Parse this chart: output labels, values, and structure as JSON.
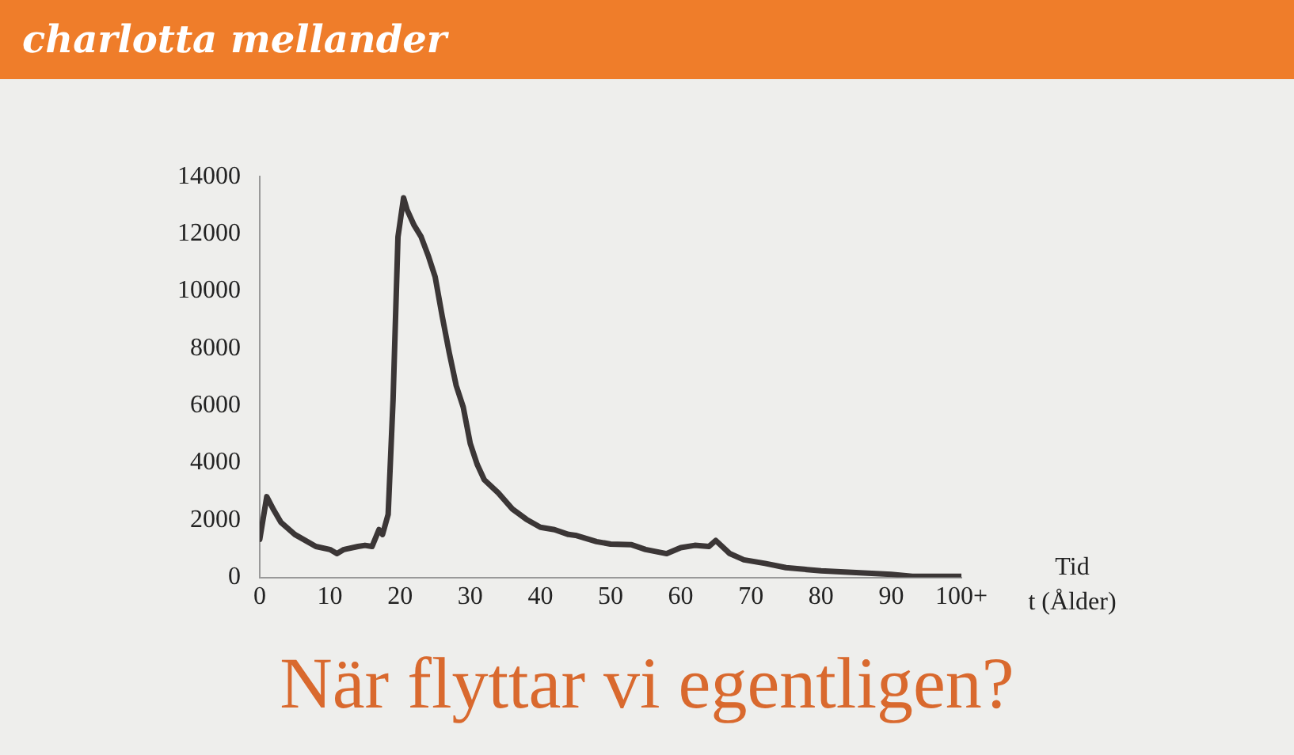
{
  "chart_data": {
    "type": "line",
    "title": "När flyttar vi egentligen?",
    "xlabel": "Tid\nt (Ålder)",
    "annotations": [
      "charlotta mellander"
    ],
    "x": [
      0,
      1,
      2,
      3,
      5,
      8,
      10,
      11,
      12,
      14,
      15,
      16,
      17,
      17.5,
      18.3,
      19,
      19.7,
      20.5,
      21,
      22,
      23,
      24,
      25,
      26,
      27,
      28,
      29,
      30,
      31,
      32,
      34,
      36,
      38,
      40,
      42,
      44,
      45,
      48,
      50,
      53,
      55,
      58,
      60,
      62,
      64,
      65,
      67,
      69,
      72,
      75,
      78,
      80,
      85,
      90,
      93,
      100
    ],
    "series": [
      {
        "color": "#3b3636",
        "values": [
          1330,
          2820,
          2350,
          1930,
          1500,
          1080,
          975,
          830,
          975,
          1080,
          1120,
          1080,
          1670,
          1500,
          2200,
          6200,
          11900,
          13260,
          12840,
          12300,
          11900,
          11250,
          10500,
          9130,
          7860,
          6700,
          5950,
          4680,
          3940,
          3410,
          2950,
          2390,
          2030,
          1750,
          1670,
          1500,
          1470,
          1250,
          1165,
          1140,
          975,
          830,
          1040,
          1120,
          1080,
          1290,
          830,
          615,
          490,
          340,
          275,
          230,
          170,
          105,
          40,
          40
        ]
      }
    ],
    "xlim": [
      0,
      100
    ],
    "xticks": [
      0,
      10,
      20,
      30,
      40,
      50,
      60,
      70,
      80,
      90,
      {
        "value": 100,
        "label": "100+"
      }
    ],
    "ylim": [
      0,
      14000
    ],
    "yticks": [
      0,
      2000,
      4000,
      6000,
      8000,
      10000,
      12000,
      14000
    ],
    "grid": false,
    "legend": false,
    "marker": "none",
    "line_style": "solid"
  }
}
